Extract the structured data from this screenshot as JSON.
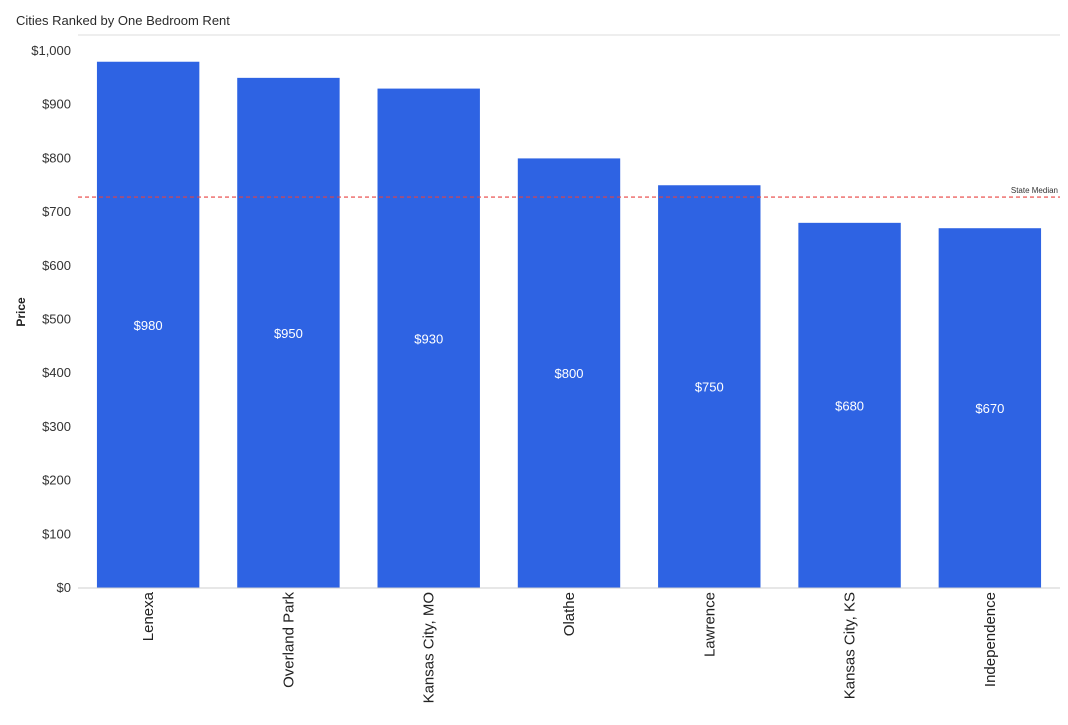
{
  "chart_data": {
    "type": "bar",
    "title": "Cities Ranked by One Bedroom Rent",
    "ylabel": "Price",
    "xlabel": "",
    "categories": [
      "Lenexa",
      "Overland Park",
      "Kansas City, MO",
      "Olathe",
      "Lawrence",
      "Kansas City, KS",
      "Independence"
    ],
    "values": [
      980,
      950,
      930,
      800,
      750,
      680,
      670
    ],
    "value_labels": [
      "$980",
      "$950",
      "$930",
      "$800",
      "$750",
      "$680",
      "$670"
    ],
    "ylim": [
      0,
      1000
    ],
    "yticks": [
      0,
      100,
      200,
      300,
      400,
      500,
      600,
      700,
      800,
      900,
      1000
    ],
    "ytick_labels": [
      "$0",
      "$100",
      "$200",
      "$300",
      "$400",
      "$500",
      "$600",
      "$700",
      "$800",
      "$900",
      "$1,000"
    ],
    "reference_line": {
      "label": "State Median",
      "value": 728,
      "color": "#e8423f",
      "style": "dashed"
    },
    "bar_color": "#2e63e3",
    "grid": false,
    "legend": "none"
  }
}
